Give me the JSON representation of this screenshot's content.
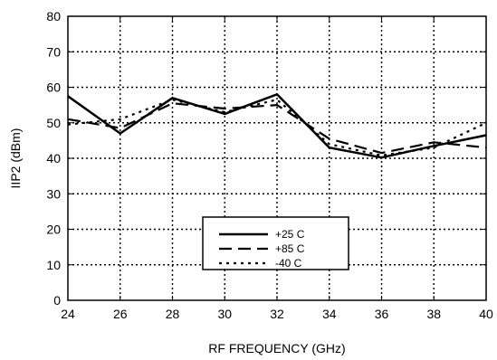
{
  "chart_data": {
    "type": "line",
    "title": "",
    "xlabel": "RF FREQUENCY (GHz)",
    "ylabel": "IIP2 (dBm)",
    "xlim": [
      24,
      40
    ],
    "ylim": [
      0,
      80
    ],
    "xticks": [
      24,
      26,
      28,
      30,
      32,
      34,
      36,
      38,
      40
    ],
    "yticks": [
      0,
      10,
      20,
      30,
      40,
      50,
      60,
      70,
      80
    ],
    "grid": true,
    "grid_style": "dotted",
    "legend_position": "bottom-center",
    "series": [
      {
        "name": "+25 C",
        "style": "solid",
        "x": [
          24,
          26,
          28,
          30,
          32,
          34,
          36,
          38,
          40
        ],
        "y": [
          57.5,
          47,
          57,
          52.5,
          58,
          43,
          40.2,
          43.5,
          46.5
        ]
      },
      {
        "name": "+85 C",
        "style": "dashed",
        "x": [
          24,
          26,
          28,
          30,
          32,
          34,
          36,
          38,
          40
        ],
        "y": [
          51,
          48.5,
          55.5,
          54,
          55,
          45.5,
          41.5,
          44.5,
          43
        ]
      },
      {
        "name": "-40 C",
        "style": "dotted",
        "x": [
          24,
          26,
          28,
          30,
          32,
          34,
          36,
          38,
          40
        ],
        "y": [
          49.5,
          51,
          56.5,
          53,
          56.5,
          44,
          40.8,
          43,
          50
        ]
      }
    ]
  }
}
